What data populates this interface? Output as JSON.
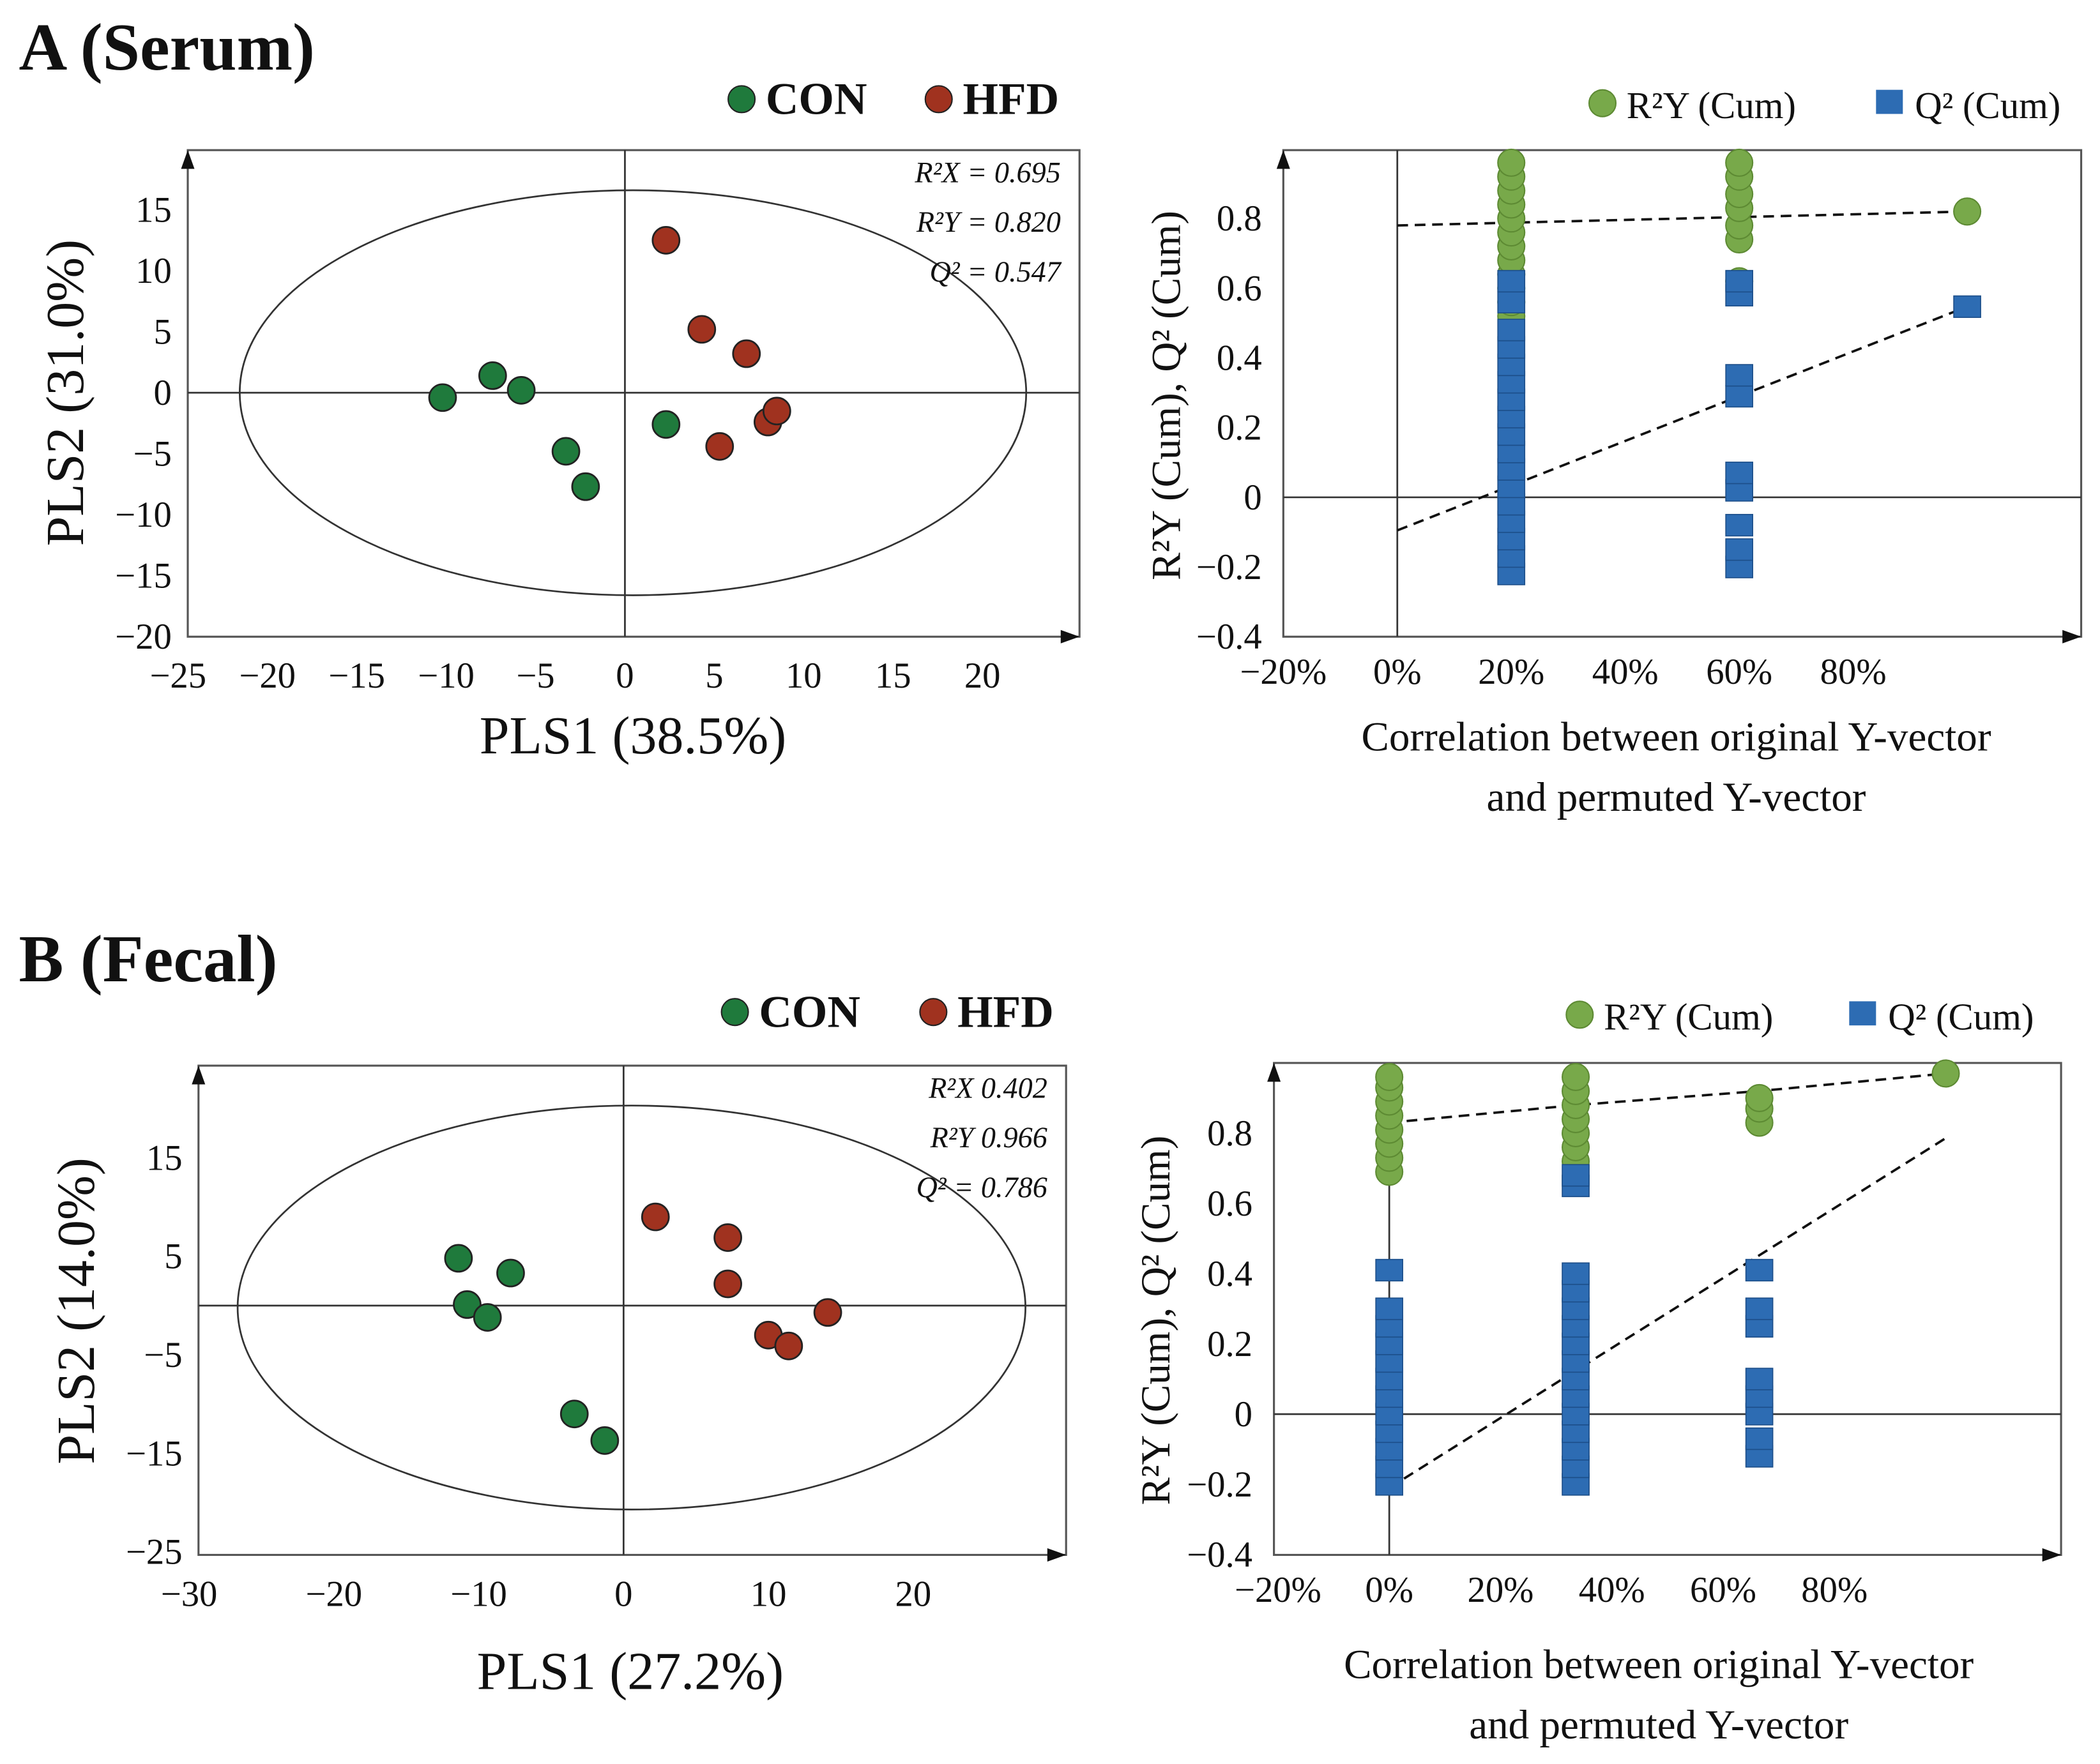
{
  "chart_data": [
    {
      "panel": "A (Serum)",
      "type": "scatter",
      "title": "A (Serum)",
      "xlabel": "PLS1 (38.5%)",
      "ylabel": "PLS2 (31.0%)",
      "xlim": [
        -25,
        25
      ],
      "ylim": [
        -20,
        19
      ],
      "xticks": [
        -25,
        -20,
        -15,
        -10,
        -5,
        0,
        5,
        10,
        15,
        20
      ],
      "yticks": [
        15,
        10,
        5,
        0,
        -5,
        -10,
        -15,
        -20
      ],
      "stats": [
        "R²X = 0.695",
        "R²Y = 0.820",
        "Q² = 0.547"
      ],
      "ellipse": {
        "cx": 0.45,
        "cy": 0,
        "rx": 22,
        "ry": 16.6
      },
      "series": [
        {
          "name": "CON",
          "color": "#1f7a3c",
          "points": [
            [
              -10.2,
              -0.4
            ],
            [
              -7.4,
              1.4
            ],
            [
              -5.8,
              0.2
            ],
            [
              -3.3,
              -4.8
            ],
            [
              -2.2,
              -7.7
            ],
            [
              2.3,
              -2.6
            ]
          ]
        },
        {
          "name": "HFD",
          "color": "#a0321f",
          "points": [
            [
              2.3,
              12.5
            ],
            [
              4.3,
              5.2
            ],
            [
              6.8,
              3.2
            ],
            [
              5.3,
              -4.4
            ],
            [
              8.0,
              -2.4
            ],
            [
              8.5,
              -1.5
            ]
          ]
        }
      ]
    },
    {
      "panel": "A (Serum) permutation",
      "type": "scatter",
      "xlabel": [
        "Correlation between original Y-vector",
        "and permuted Y-vector"
      ],
      "ylabel": "R²Y (Cum), Q² (Cum)",
      "xlim": [
        -20,
        120
      ],
      "ylim": [
        -0.4,
        1.0
      ],
      "xticks": [
        "-20%",
        "0%",
        "20%",
        "40%",
        "60%",
        "80%"
      ],
      "xtick_values": [
        -20,
        0,
        20,
        40,
        60,
        80
      ],
      "yticks": [
        0.8,
        0.6,
        0.4,
        0.2,
        0,
        -0.2,
        -0.4
      ],
      "series": [
        {
          "name": "R²Y (Cum)",
          "color": "#78a94a",
          "marker": "circle",
          "points": [
            [
              20,
              0.52
            ],
            [
              20,
              0.56
            ],
            [
              20,
              0.6
            ],
            [
              20,
              0.64
            ],
            [
              20,
              0.68
            ],
            [
              20,
              0.72
            ],
            [
              20,
              0.76
            ],
            [
              20,
              0.8
            ],
            [
              20,
              0.84
            ],
            [
              20,
              0.88
            ],
            [
              20,
              0.92
            ],
            [
              20,
              0.96
            ],
            [
              60,
              0.62
            ],
            [
              60,
              0.74
            ],
            [
              60,
              0.78
            ],
            [
              60,
              0.83
            ],
            [
              60,
              0.87
            ],
            [
              60,
              0.92
            ],
            [
              60,
              0.96
            ],
            [
              100,
              0.82
            ]
          ]
        },
        {
          "name": "Q² (Cum)",
          "color": "#2d6cb3",
          "marker": "square",
          "points": [
            [
              20,
              -0.22
            ],
            [
              20,
              -0.17
            ],
            [
              20,
              -0.12
            ],
            [
              20,
              -0.07
            ],
            [
              20,
              -0.02
            ],
            [
              20,
              0.03
            ],
            [
              20,
              0.08
            ],
            [
              20,
              0.13
            ],
            [
              20,
              0.18
            ],
            [
              20,
              0.23
            ],
            [
              20,
              0.28
            ],
            [
              20,
              0.33
            ],
            [
              20,
              0.38
            ],
            [
              20,
              0.43
            ],
            [
              20,
              0.48
            ],
            [
              20,
              0.56
            ],
            [
              20,
              0.62
            ],
            [
              60,
              -0.2
            ],
            [
              60,
              -0.15
            ],
            [
              60,
              -0.08
            ],
            [
              60,
              0.02
            ],
            [
              60,
              0.07
            ],
            [
              60,
              0.29
            ],
            [
              60,
              0.35
            ],
            [
              60,
              0.58
            ],
            [
              60,
              0.62
            ],
            [
              100,
              0.547
            ]
          ]
        }
      ],
      "fit_lines": [
        {
          "series": "R²Y (Cum)",
          "from": [
            0,
            0.78
          ],
          "to": [
            100,
            0.82
          ]
        },
        {
          "series": "Q² (Cum)",
          "from": [
            0,
            -0.095
          ],
          "to": [
            100,
            0.547
          ]
        }
      ]
    },
    {
      "panel": "B (Fecal)",
      "type": "scatter",
      "title": "B (Fecal)",
      "xlabel": "PLS1 (27.2%)",
      "ylabel": "PLS2 (14.0%)",
      "xlim": [
        -30,
        30
      ],
      "ylim": [
        -25,
        24
      ],
      "xticks": [
        -30,
        -20,
        -10,
        0,
        10,
        20
      ],
      "yticks": [
        15,
        5,
        -5,
        -15,
        -25
      ],
      "stats": [
        "R²X   0.402",
        "R²Y   0.966",
        "Q² = 0.786"
      ],
      "ellipse": {
        "cx": 0.55,
        "cy": -0.2,
        "rx": 27.2,
        "ry": 20.5
      },
      "series": [
        {
          "name": "CON",
          "color": "#1f7a3c",
          "points": [
            [
              -11.4,
              4.8
            ],
            [
              -7.8,
              3.3
            ],
            [
              -10.8,
              0.1
            ],
            [
              -9.4,
              -1.2
            ],
            [
              -3.4,
              -11
            ],
            [
              -1.3,
              -13.7
            ]
          ]
        },
        {
          "name": "HFD",
          "color": "#a0321f",
          "points": [
            [
              2.2,
              9
            ],
            [
              7.2,
              6.9
            ],
            [
              7.2,
              2.2
            ],
            [
              14.1,
              -0.7
            ],
            [
              10,
              -3
            ],
            [
              11.4,
              -4.1
            ]
          ]
        }
      ]
    },
    {
      "panel": "B (Fecal) permutation",
      "type": "scatter",
      "xlabel": [
        "Correlation between original Y-vector",
        "and permuted Y-vector"
      ],
      "ylabel": "R²Y (Cum), Q² (Cum)",
      "xlim": [
        -20,
        120
      ],
      "ylim": [
        -0.4,
        1.0
      ],
      "xticks": [
        "-20%",
        "0%",
        "20%",
        "40%",
        "60%",
        "80%"
      ],
      "xtick_values": [
        -20,
        0,
        20,
        40,
        60,
        80
      ],
      "yticks": [
        0.8,
        0.6,
        0.4,
        0.2,
        0,
        -0.2,
        -0.4
      ],
      "series": [
        {
          "name": "R²Y (Cum)",
          "color": "#78a94a",
          "marker": "circle",
          "points": [
            [
              0,
              0.69
            ],
            [
              0,
              0.73
            ],
            [
              0,
              0.77
            ],
            [
              0,
              0.81
            ],
            [
              0,
              0.85
            ],
            [
              0,
              0.89
            ],
            [
              0,
              0.93
            ],
            [
              0,
              0.96
            ],
            [
              33.5,
              0.72
            ],
            [
              33.5,
              0.76
            ],
            [
              33.5,
              0.8
            ],
            [
              33.5,
              0.84
            ],
            [
              33.5,
              0.88
            ],
            [
              33.5,
              0.92
            ],
            [
              33.5,
              0.96
            ],
            [
              66.5,
              0.83
            ],
            [
              66.5,
              0.87
            ],
            [
              66.5,
              0.9
            ],
            [
              100,
              0.97
            ]
          ]
        },
        {
          "name": "Q² (Cum)",
          "color": "#2d6cb3",
          "marker": "square",
          "points": [
            [
              0,
              -0.2
            ],
            [
              0,
              -0.15
            ],
            [
              0,
              -0.1
            ],
            [
              0,
              -0.05
            ],
            [
              0,
              0
            ],
            [
              0,
              0.05
            ],
            [
              0,
              0.1
            ],
            [
              0,
              0.15
            ],
            [
              0,
              0.2
            ],
            [
              0,
              0.25
            ],
            [
              0,
              0.3
            ],
            [
              0,
              0.41
            ],
            [
              33.5,
              -0.2
            ],
            [
              33.5,
              -0.15
            ],
            [
              33.5,
              -0.1
            ],
            [
              33.5,
              -0.05
            ],
            [
              33.5,
              0
            ],
            [
              33.5,
              0.05
            ],
            [
              33.5,
              0.1
            ],
            [
              33.5,
              0.15
            ],
            [
              33.5,
              0.2
            ],
            [
              33.5,
              0.25
            ],
            [
              33.5,
              0.3
            ],
            [
              33.5,
              0.35
            ],
            [
              33.5,
              0.4
            ],
            [
              33.5,
              0.65
            ],
            [
              33.5,
              0.68
            ],
            [
              66.5,
              -0.12
            ],
            [
              66.5,
              -0.07
            ],
            [
              66.5,
              0
            ],
            [
              66.5,
              0.05
            ],
            [
              66.5,
              0.1
            ],
            [
              66.5,
              0.25
            ],
            [
              66.5,
              0.3
            ],
            [
              66.5,
              0.41
            ]
          ]
        }
      ],
      "fit_lines": [
        {
          "series": "R²Y (Cum)",
          "from": [
            0,
            0.83
          ],
          "to": [
            100,
            0.97
          ],
          "via": [
            [
              33.5,
              0.88
            ],
            [
              66.5,
              0.92
            ]
          ]
        },
        {
          "series": "Q² (Cum)",
          "from": [
            0,
            -0.21
          ],
          "to": [
            100,
            0.786
          ]
        }
      ]
    }
  ]
}
